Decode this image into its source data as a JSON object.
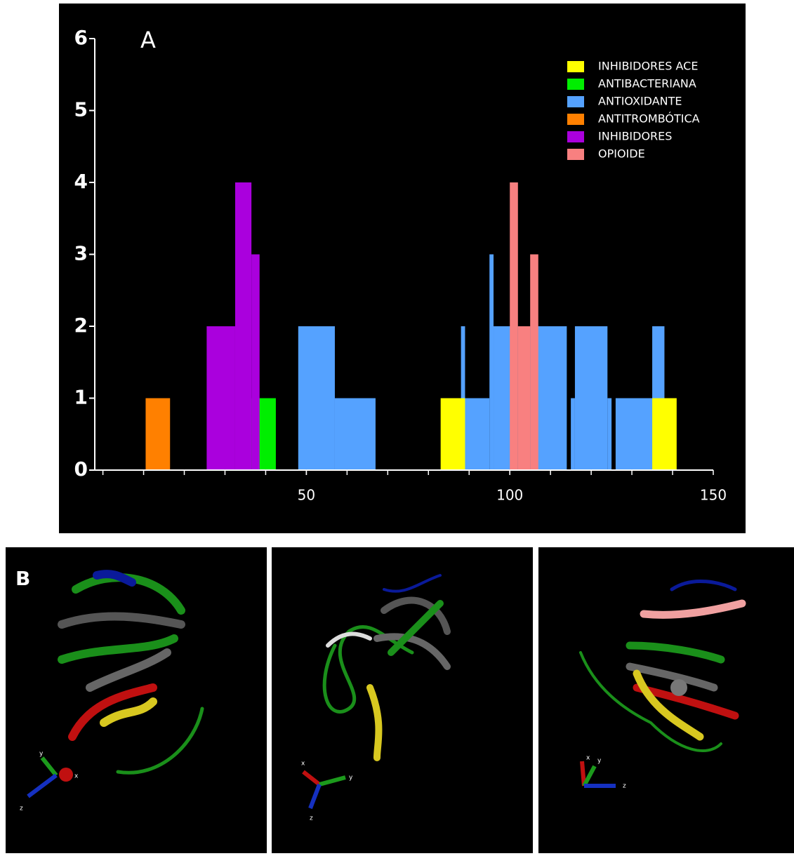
{
  "chart_data": {
    "type": "bar-ranges",
    "panel_label": "A",
    "xlim": [
      -2,
      150
    ],
    "xticks": [
      50,
      100,
      150
    ],
    "xminorticks": [
      0,
      10,
      20,
      30,
      40,
      50,
      60,
      70,
      80,
      90,
      100,
      110,
      120,
      130,
      140
    ],
    "ylim": [
      0,
      6
    ],
    "yticks": [
      0,
      1,
      2,
      3,
      4,
      5,
      6
    ],
    "legend": "top-right",
    "series": [
      {
        "name": "INHIBIDORES ACE",
        "color": "#ffff00",
        "x0": [
          83,
          135
        ],
        "x1": [
          89,
          141
        ],
        "values": [
          1,
          1
        ]
      },
      {
        "name": "ANTIBACTERIANA",
        "color": "#00ee00",
        "x0": [
          36.5
        ],
        "x1": [
          42.5
        ],
        "values": [
          1
        ]
      },
      {
        "name": "ANTIOXIDANTE",
        "color": "#55a2ff",
        "x0": [
          48,
          57,
          88,
          89,
          95,
          96,
          105,
          115,
          116,
          124,
          126,
          135
        ],
        "x1": [
          57,
          67,
          89,
          95,
          96,
          102,
          114,
          116,
          124,
          125,
          135,
          138
        ],
        "values": [
          2,
          1,
          2,
          1,
          3,
          2,
          2,
          1,
          2,
          1,
          1,
          2
        ]
      },
      {
        "name": "ANTITROMBÓTICA",
        "color": "#ff8000",
        "x0": [
          10.5
        ],
        "x1": [
          16.5
        ],
        "values": [
          1
        ]
      },
      {
        "name": "INHIBIDORES",
        "color": "#aa00dd",
        "x0": [
          25.5,
          32.5,
          36.5
        ],
        "x1": [
          32.5,
          36.5,
          38.5
        ],
        "values": [
          2,
          4,
          3
        ]
      },
      {
        "name": "OPIOIDE",
        "color": "#f88080",
        "x0": [
          100,
          102,
          105
        ],
        "x1": [
          102,
          105,
          107
        ],
        "values": [
          4,
          2,
          3
        ]
      }
    ]
  },
  "panel_b": {
    "label": "B",
    "views": [
      {
        "axes": [
          "y",
          "x",
          "z"
        ]
      },
      {
        "axes": [
          "x",
          "y",
          "z"
        ]
      },
      {
        "axes": [
          "x",
          "y",
          "z"
        ]
      }
    ]
  }
}
